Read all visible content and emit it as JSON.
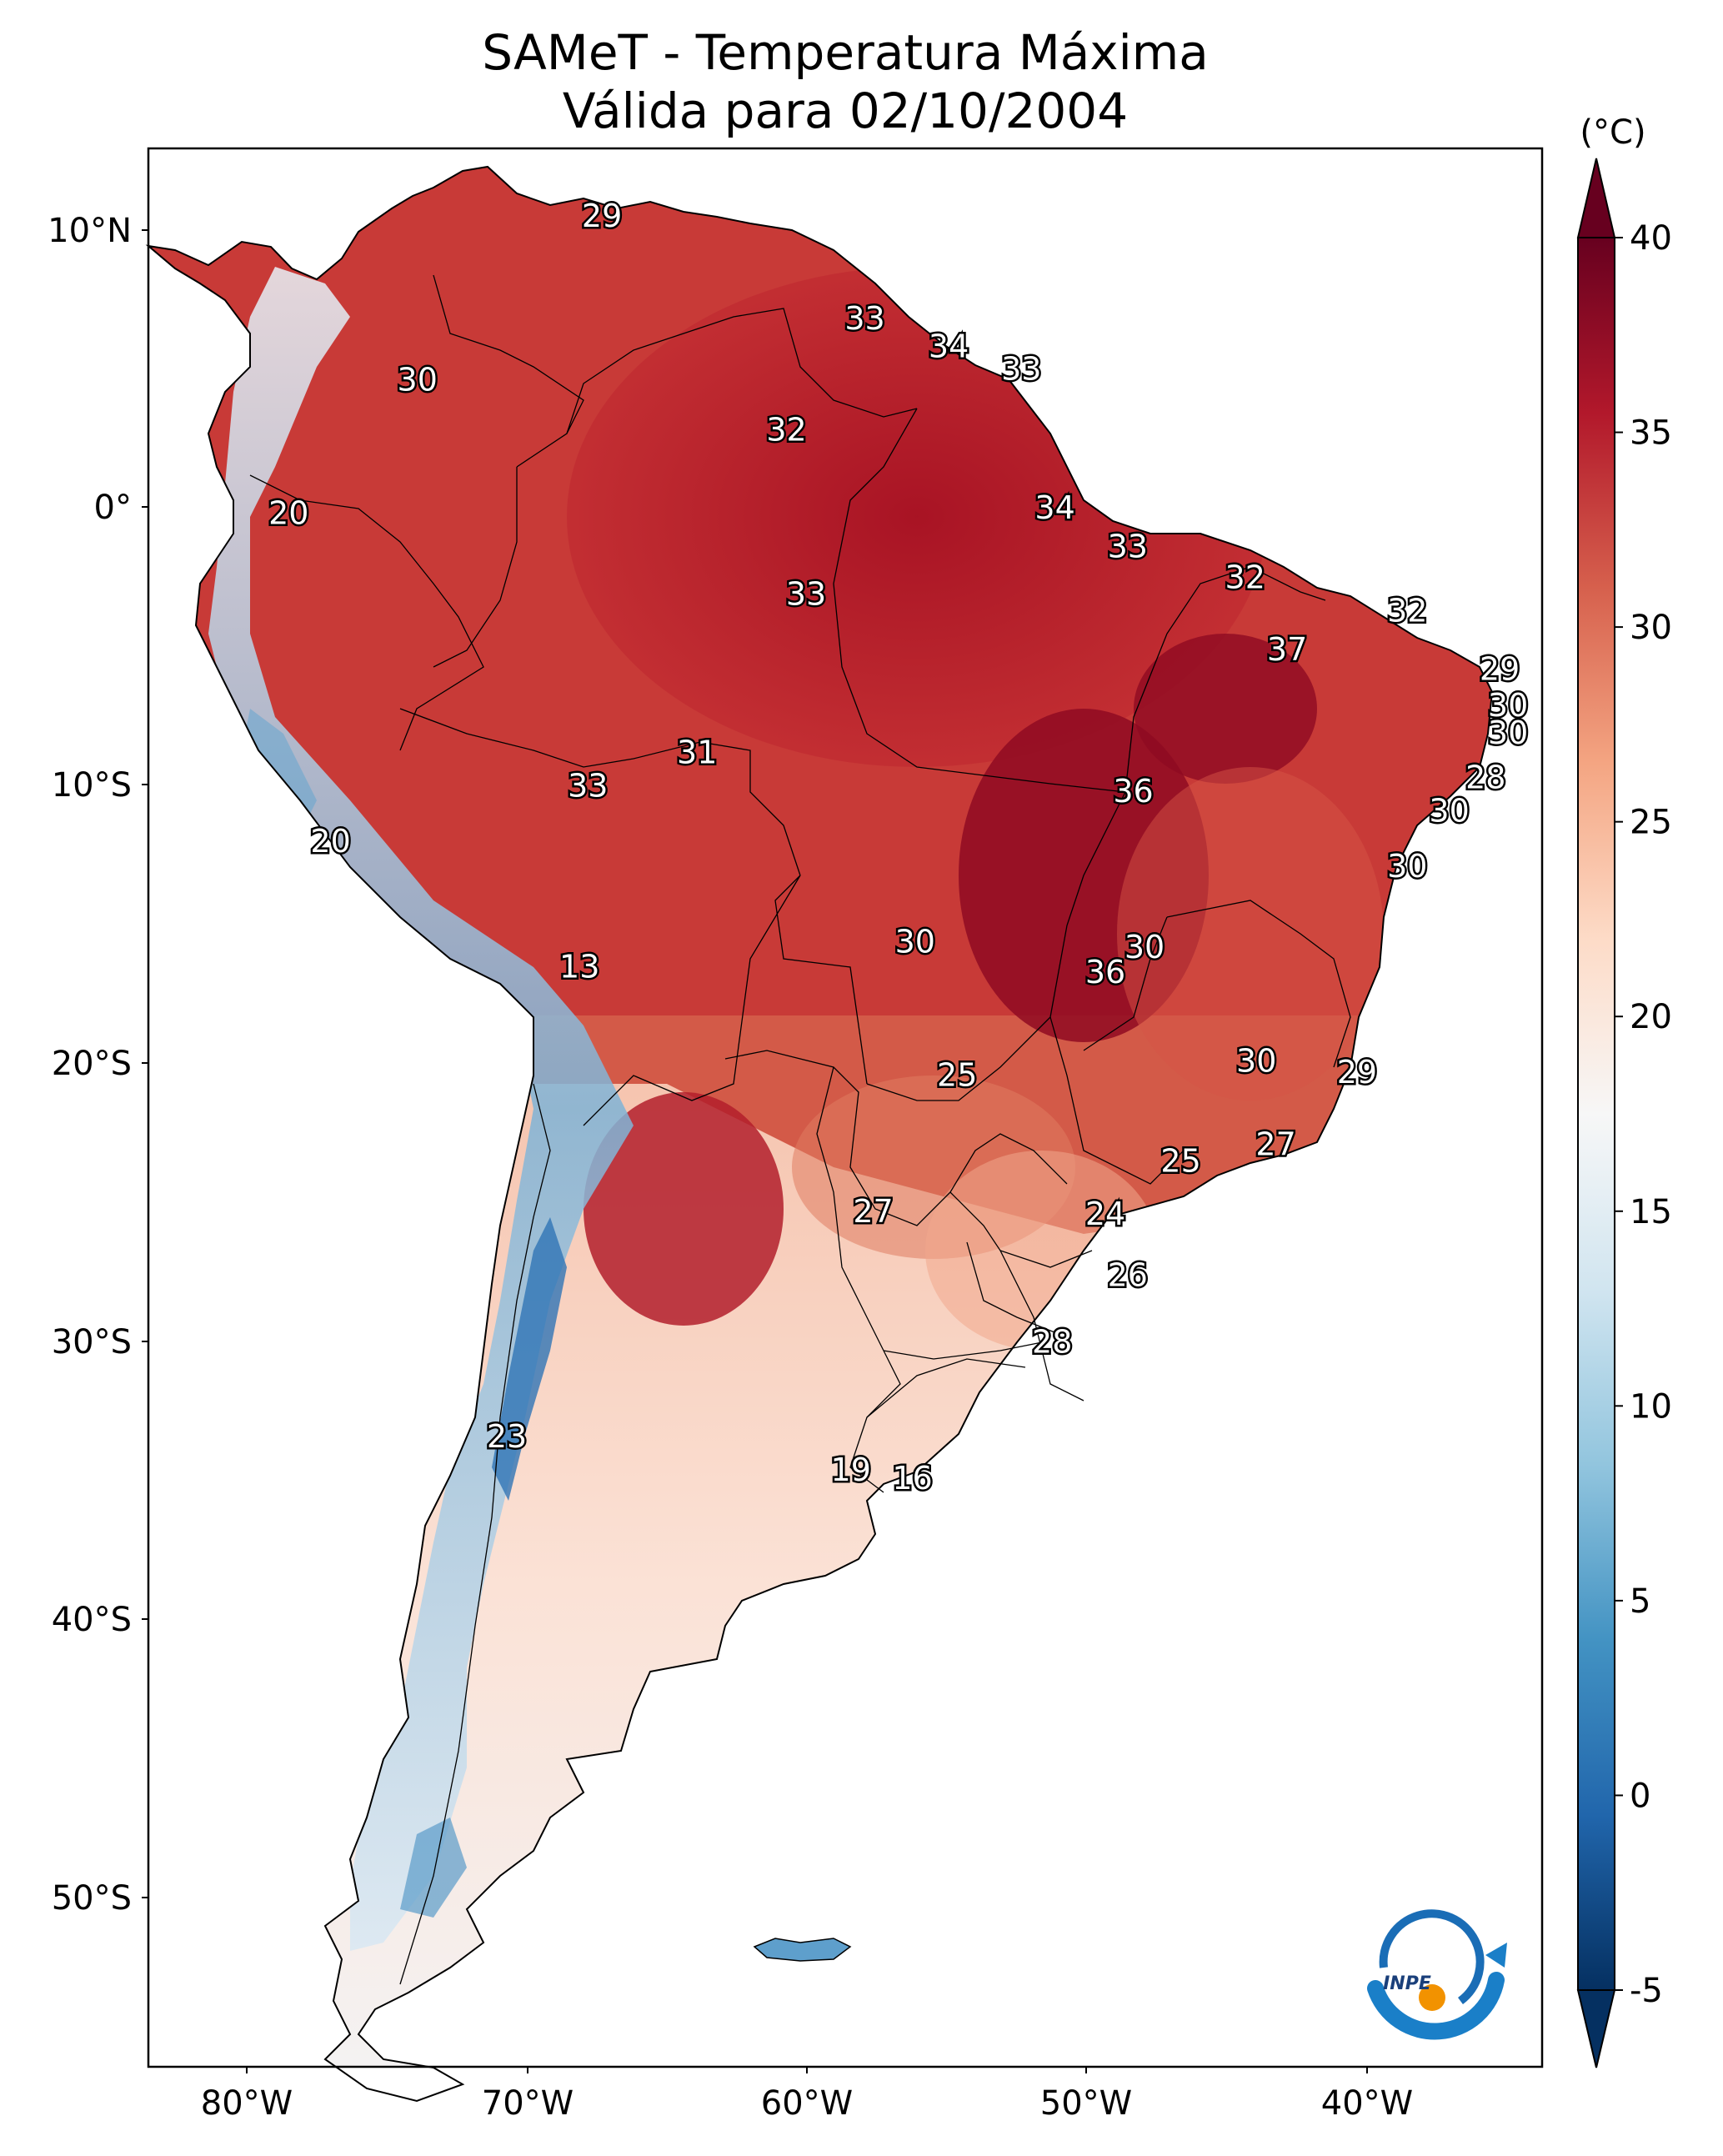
{
  "title": {
    "line1": "SAMeT - Temperatura Máxima",
    "line2": "Válida para 02/10/2004"
  },
  "map": {
    "lat_ticks": [
      "10°N",
      "0°",
      "10°S",
      "20°S",
      "30°S",
      "40°S",
      "50°S"
    ],
    "lon_ticks": [
      "80°W",
      "70°W",
      "60°W",
      "50°W",
      "40°W"
    ],
    "station_labels": [
      {
        "value": "29",
        "lon": -67.3,
        "lat": 10.5
      },
      {
        "value": "33",
        "lon": -57.9,
        "lat": 6.8
      },
      {
        "value": "34",
        "lon": -54.9,
        "lat": 5.8
      },
      {
        "value": "33",
        "lon": -52.3,
        "lat": 5.0
      },
      {
        "value": "30",
        "lon": -73.9,
        "lat": 4.6
      },
      {
        "value": "32",
        "lon": -60.7,
        "lat": 2.8
      },
      {
        "value": "20",
        "lon": -78.5,
        "lat": -0.2
      },
      {
        "value": "34",
        "lon": -51.1,
        "lat": 0.0
      },
      {
        "value": "33",
        "lon": -48.5,
        "lat": -1.4
      },
      {
        "value": "33",
        "lon": -60.0,
        "lat": -3.1
      },
      {
        "value": "32",
        "lon": -44.3,
        "lat": -2.5
      },
      {
        "value": "32",
        "lon": -38.5,
        "lat": -3.7
      },
      {
        "value": "37",
        "lon": -42.8,
        "lat": -5.1
      },
      {
        "value": "29",
        "lon": -35.2,
        "lat": -5.8
      },
      {
        "value": "30",
        "lon": -34.9,
        "lat": -7.1
      },
      {
        "value": "30",
        "lon": -34.9,
        "lat": -8.1
      },
      {
        "value": "31",
        "lon": -63.9,
        "lat": -8.8
      },
      {
        "value": "28",
        "lon": -35.7,
        "lat": -9.7
      },
      {
        "value": "33",
        "lon": -67.8,
        "lat": -10.0
      },
      {
        "value": "36",
        "lon": -48.3,
        "lat": -10.2
      },
      {
        "value": "30",
        "lon": -37.0,
        "lat": -10.9
      },
      {
        "value": "20",
        "lon": -77.0,
        "lat": -12.0
      },
      {
        "value": "30",
        "lon": -38.5,
        "lat": -12.9
      },
      {
        "value": "30",
        "lon": -56.1,
        "lat": -15.6
      },
      {
        "value": "30",
        "lon": -47.9,
        "lat": -15.8
      },
      {
        "value": "13",
        "lon": -68.1,
        "lat": -16.5
      },
      {
        "value": "36",
        "lon": -49.3,
        "lat": -16.7
      },
      {
        "value": "30",
        "lon": -43.9,
        "lat": -19.9
      },
      {
        "value": "29",
        "lon": -40.3,
        "lat": -20.3
      },
      {
        "value": "25",
        "lon": -54.6,
        "lat": -20.4
      },
      {
        "value": "27",
        "lon": -43.2,
        "lat": -22.9
      },
      {
        "value": "25",
        "lon": -46.6,
        "lat": -23.5
      },
      {
        "value": "27",
        "lon": -57.6,
        "lat": -25.3
      },
      {
        "value": "24",
        "lon": -49.3,
        "lat": -25.4
      },
      {
        "value": "26",
        "lon": -48.5,
        "lat": -27.6
      },
      {
        "value": "28",
        "lon": -51.2,
        "lat": -30.0
      },
      {
        "value": "23",
        "lon": -70.7,
        "lat": -33.4
      },
      {
        "value": "19",
        "lon": -58.4,
        "lat": -34.6
      },
      {
        "value": "16",
        "lon": -56.2,
        "lat": -34.9
      }
    ]
  },
  "colorbar": {
    "unit_label": "(°C)",
    "ticks": [
      "40",
      "35",
      "30",
      "25",
      "20",
      "15",
      "10",
      "5",
      "0",
      "-5"
    ],
    "min": -5,
    "max": 40,
    "colors": [
      "#053061",
      "#2166ac",
      "#4393c3",
      "#92c5de",
      "#d1e5f0",
      "#f7f7f7",
      "#fddbc7",
      "#f4a582",
      "#d6604d",
      "#b2182b",
      "#67001f"
    ]
  },
  "logo": {
    "text": "INPE"
  }
}
